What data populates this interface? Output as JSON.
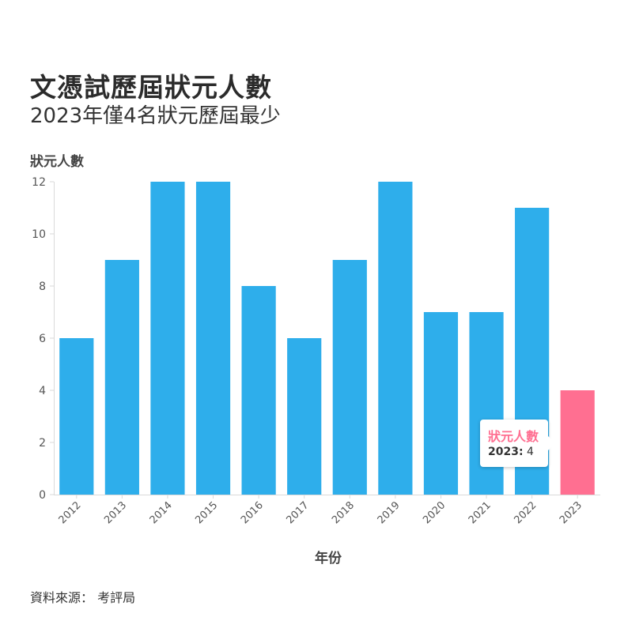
{
  "header": {
    "title": "文憑試歷屆狀元人數",
    "subtitle": "2023年僅4名狀元歷屆最少"
  },
  "source": "資料來源： 考評局",
  "tooltip": {
    "series": "狀元人數",
    "category": "2023:",
    "value": "4"
  },
  "colors": {
    "bar": "#2eaeeb",
    "highlight": "#ff6f91"
  },
  "chart_data": {
    "type": "bar",
    "ylabel": "狀元人數",
    "xlabel": "年份",
    "categories": [
      "2012",
      "2013",
      "2014",
      "2015",
      "2016",
      "2017",
      "2018",
      "2019",
      "2020",
      "2021",
      "2022",
      "2023"
    ],
    "values": [
      6,
      9,
      12,
      12,
      8,
      6,
      9,
      12,
      7,
      7,
      11,
      4
    ],
    "highlighted": "2023",
    "ylim": [
      0,
      12
    ],
    "yticks": [
      0,
      2,
      4,
      6,
      8,
      10,
      12
    ],
    "grid": false
  }
}
